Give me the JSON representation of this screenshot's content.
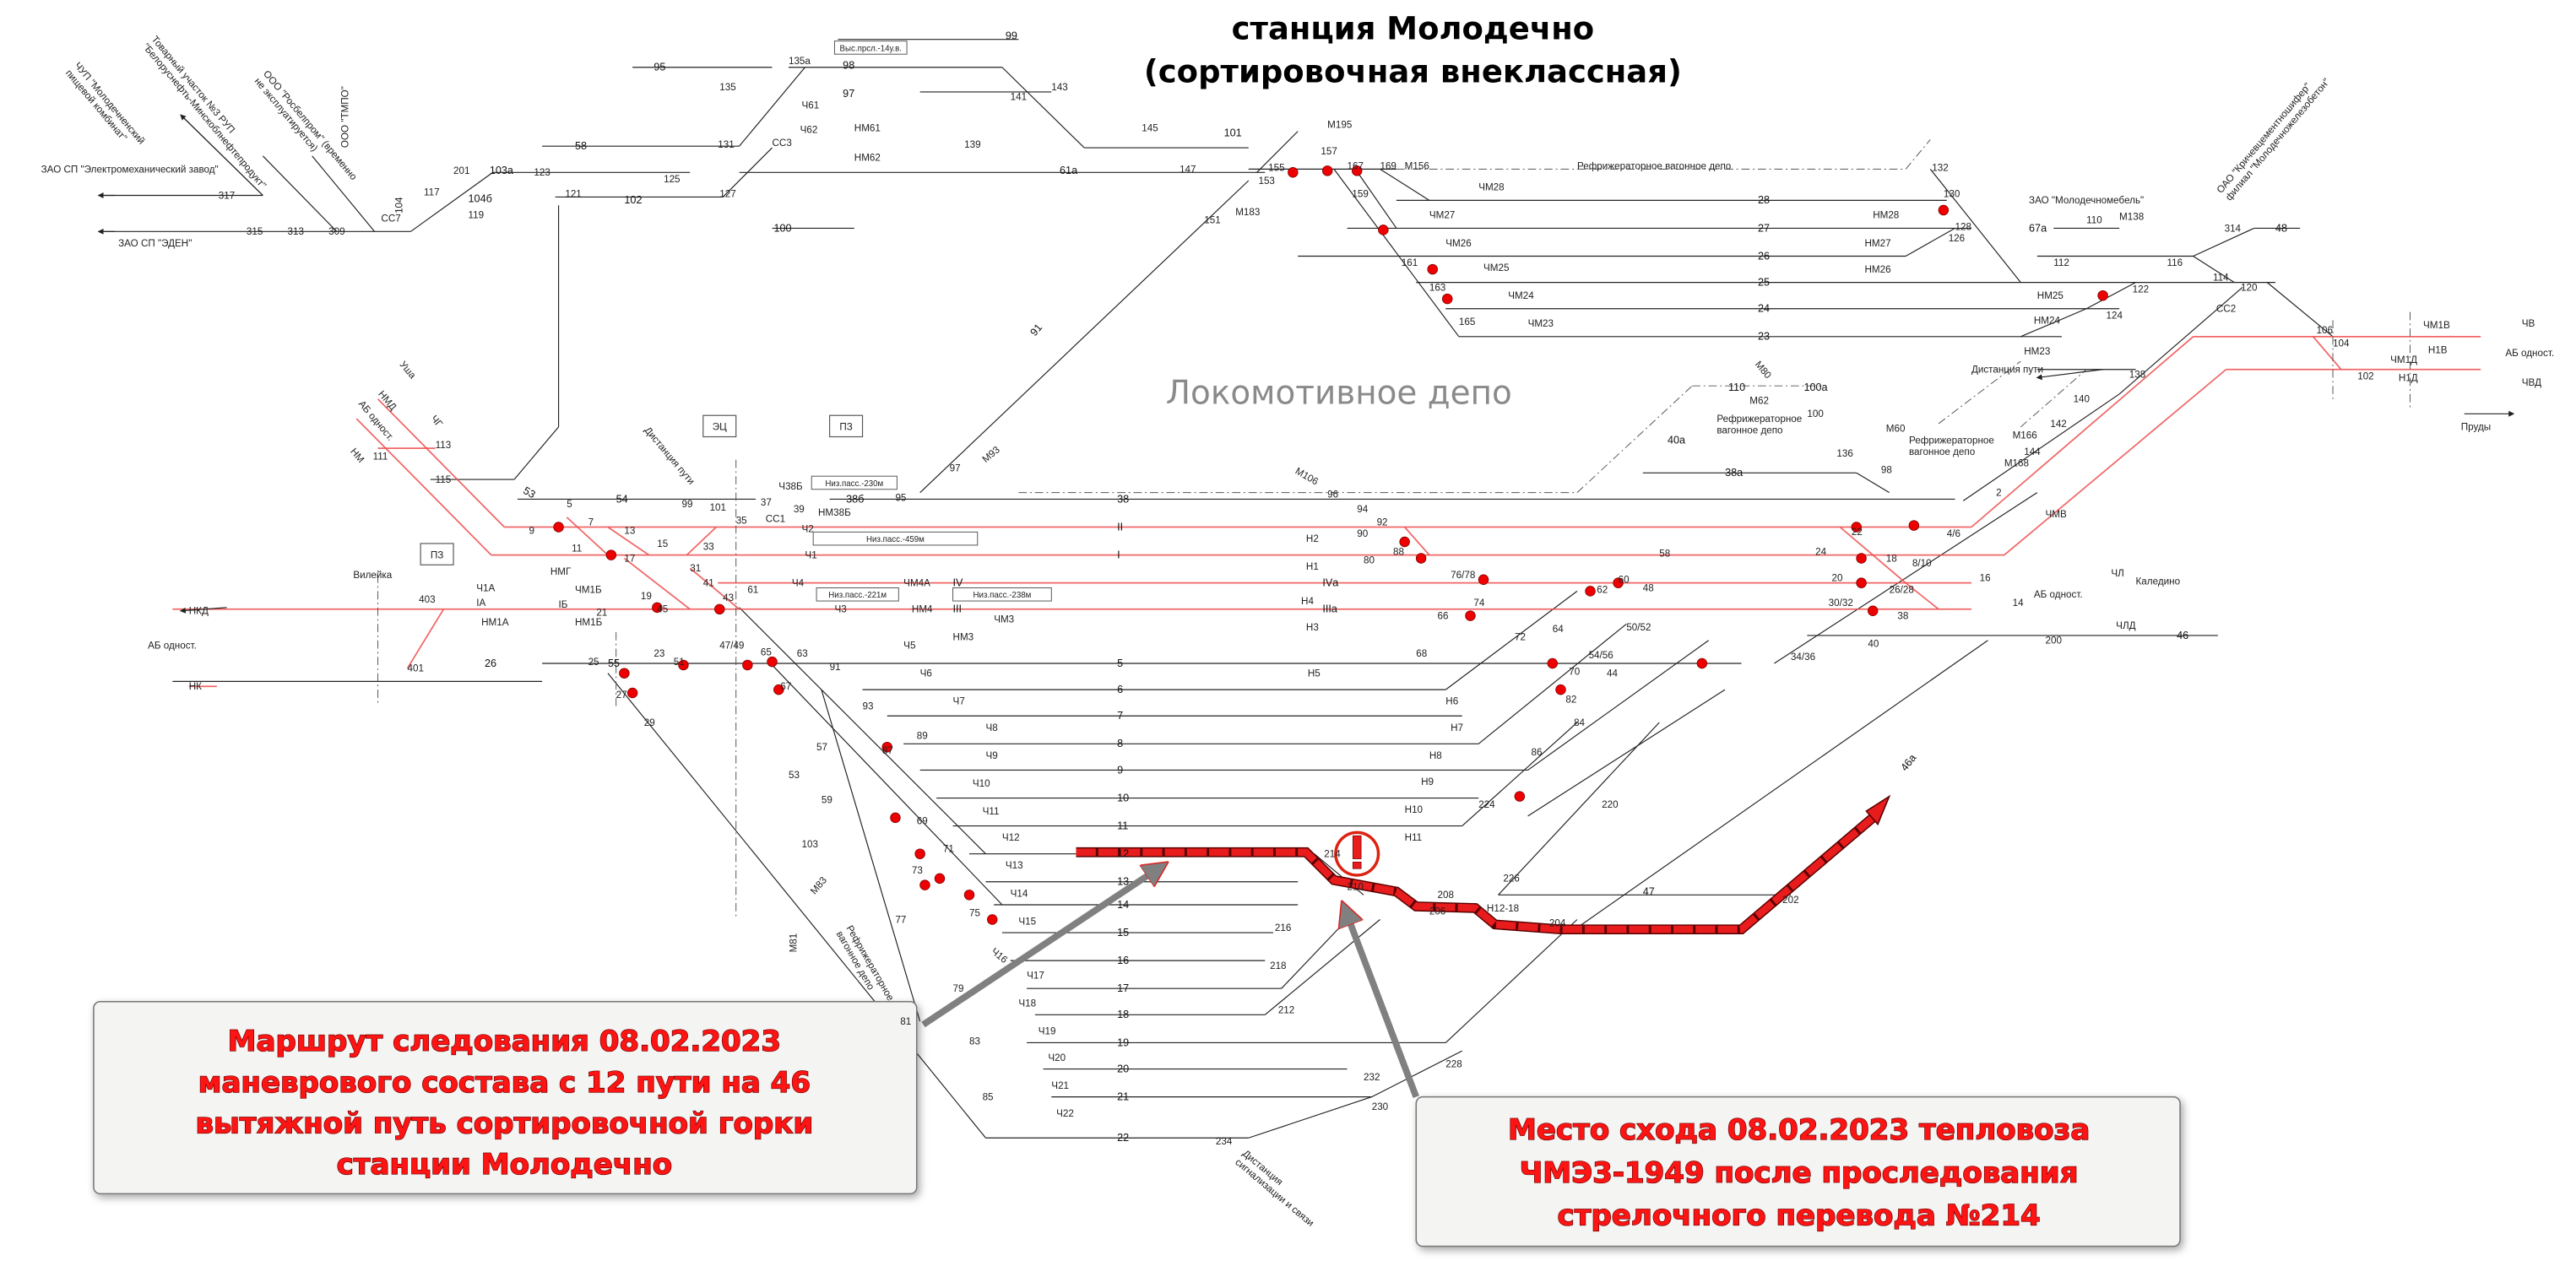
{
  "title": {
    "line1": "станция Молодечно",
    "line2": "(сортировочная внеклассная)"
  },
  "depot": "Локомотивное депо",
  "callouts": {
    "route": [
      "Маршрут следования 08.02.2023",
      "маневрового состава с 12 пути на 46",
      "вытяжной путь сортировочной горки",
      "станции Молодечно"
    ],
    "derailment": [
      "Место схода 08.02.2023 тепловоза",
      "ЧМЭ3-1949 после проследования",
      "стрелочного перевода №214"
    ]
  },
  "warning_icon": "exclamation-circle-icon",
  "colors": {
    "route_highlight": "#e81c1c",
    "main_track": "#ef4b4b",
    "track": "#222222",
    "callout_text": "#ff1414",
    "pointer_arrow": "#808080"
  },
  "labels": {
    "tracks": [
      "28",
      "27",
      "26",
      "25",
      "24",
      "23",
      "38",
      "II",
      "I",
      "IV",
      "III",
      "IVа",
      "IIIа",
      "5",
      "6",
      "7",
      "8",
      "9",
      "10",
      "11",
      "12",
      "13",
      "14",
      "15",
      "16",
      "17",
      "18",
      "19",
      "20",
      "21",
      "22",
      "38б",
      "38а",
      "40а",
      "46",
      "46а",
      "47",
      "54",
      "26",
      "55",
      "53",
      "58",
      "95",
      "97",
      "98",
      "99",
      "100",
      "101",
      "102",
      "61а",
      "67а",
      "48",
      "91",
      "100а",
      "110",
      "104б",
      "103а"
    ],
    "switches": [
      "155",
      "157",
      "159",
      "161",
      "163",
      "165",
      "167",
      "169",
      "130",
      "128",
      "126",
      "132",
      "112",
      "116",
      "114",
      "120",
      "122",
      "124",
      "106",
      "104",
      "102",
      "138",
      "140",
      "142",
      "144",
      "136",
      "98",
      "100",
      "2",
      "4/6",
      "8/10",
      "18",
      "20",
      "22",
      "24",
      "26/28",
      "30/32",
      "38",
      "40",
      "34/36",
      "16",
      "14",
      "200",
      "96",
      "94",
      "92",
      "90",
      "88",
      "80",
      "76/78",
      "74",
      "66",
      "72",
      "64",
      "62",
      "60",
      "58",
      "48",
      "50/52",
      "54/56",
      "44",
      "70",
      "68",
      "82",
      "84",
      "86",
      "214",
      "210",
      "208",
      "206",
      "204",
      "202",
      "226",
      "224",
      "220",
      "218",
      "216",
      "212",
      "228",
      "230",
      "232",
      "234",
      "61",
      "63",
      "65",
      "67",
      "91",
      "93",
      "87",
      "89",
      "69",
      "71",
      "73",
      "75",
      "77",
      "79",
      "81",
      "83",
      "85",
      "57",
      "53",
      "59",
      "103",
      "47/49",
      "43",
      "41",
      "45",
      "23",
      "51",
      "25",
      "27",
      "29",
      "21",
      "19",
      "17",
      "15",
      "13",
      "33",
      "35",
      "37",
      "39",
      "31",
      "9",
      "11",
      "7",
      "5",
      "99",
      "101",
      "111",
      "113",
      "115",
      "401",
      "403",
      "317",
      "315",
      "313",
      "309",
      "117",
      "104",
      "201",
      "119",
      "123",
      "121",
      "125",
      "127",
      "131",
      "135",
      "135а",
      "139",
      "141",
      "143",
      "145",
      "147",
      "153",
      "151",
      "97",
      "95",
      "110",
      "314"
    ],
    "signals": [
      "ЧМ28",
      "ЧМ27",
      "ЧМ26",
      "ЧМ25",
      "ЧМ24",
      "ЧМ23",
      "НМ28",
      "НМ27",
      "НМ26",
      "НМ25",
      "НМ24",
      "НМ23",
      "М156",
      "М195",
      "М183",
      "М138",
      "М166",
      "М168",
      "М80",
      "М62",
      "М60",
      "М106",
      "М93",
      "Н2",
      "Н1",
      "Н4",
      "Н3",
      "Н5",
      "Н6",
      "Н7",
      "Н8",
      "Н9",
      "Н10",
      "Н11",
      "Н12-18",
      "ЧМВ",
      "ЧЛ",
      "ЧЛД",
      "ЧМ1В",
      "Н1В",
      "ЧМ1Д",
      "Н1Д",
      "ЧВ",
      "ЧВД",
      "Ч5",
      "Ч6",
      "Ч7",
      "Ч8",
      "Ч9",
      "Ч10",
      "Ч11",
      "Ч12",
      "Ч13",
      "Ч14",
      "Ч15",
      "Ч16",
      "Ч17",
      "Ч18",
      "Ч19",
      "Ч20",
      "Ч21",
      "Ч22",
      "НКД",
      "НК",
      "Ч1А",
      "НМ1А",
      "IА",
      "IБ",
      "ЧМ1Б",
      "НМ1Б",
      "НМГ",
      "Ч1",
      "Ч2",
      "Ч4",
      "ЧМ4А",
      "Ч3",
      "НМ4",
      "ЧМ3",
      "НМ3",
      "НМ38Б",
      "Ч38Б",
      "СС1",
      "СС2",
      "СС3",
      "СС7",
      "Ч61",
      "Ч62",
      "НМ61",
      "НМ62",
      "НМ",
      "НМД",
      "ЧГ",
      "М81",
      "М83"
    ],
    "places": [
      "Уша",
      "Вилейка",
      "Каледино",
      "Пруды",
      "Дистанция пути",
      "Дистанция пути",
      "ЗАО СП \"ЭДЕН\"",
      "ЗАО СП \"Электромеханический завод\"",
      "ЧУП \"Молодечненский пищевой комбинат\"",
      "Товарный участок №3 РУП \"Белоруснефть-Минскоблнефтепродукт\"",
      "ООО \"Росбелпром\" (временно не эксплуатируется)",
      "ООО \"ТМПО\"",
      "ЗАО \"Молодечномебель\"",
      "ОАО \"Кричевцементношифер\" филиал \"Молодечножелезобетон\"",
      "Рефрижераторное вагонное депо",
      "Рефрижераторное вагонное депо",
      "Рефрижераторное вагонное депо",
      "Рефрижераторное вагонное депо",
      "Дистанция сигнализации и связи",
      "АБ одност.",
      "АБ одност.",
      "АБ одност.",
      "АБ одност."
    ],
    "boxes": [
      "ЭЦ",
      "ПЗ",
      "ПЗ"
    ],
    "notes": [
      "Низ.пасс.-230м",
      "Низ.пасс.-459м",
      "Низ.пасс.-221м",
      "Низ.пасс.-238м",
      "Выс.прсл.-14у.в."
    ]
  }
}
